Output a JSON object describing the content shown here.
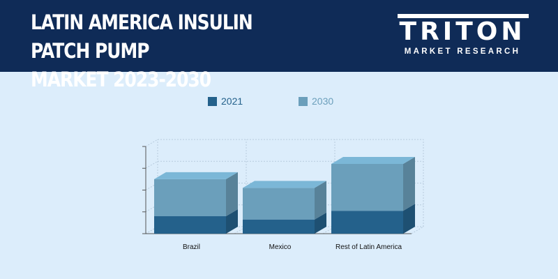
{
  "header": {
    "title_line1": "LATIN AMERICA INSULIN PATCH PUMP",
    "title_line2": "MARKET 2023-2030",
    "logo_word": "TRITON",
    "logo_sub": "MARKET RESEARCH",
    "background": "#0f2b57"
  },
  "chart_data": {
    "type": "bar",
    "stacked": true,
    "three_d": true,
    "categories": [
      "Brazil",
      "Mexico",
      "Rest of Latin America"
    ],
    "series": [
      {
        "name": "2021",
        "values": [
          0.8,
          0.65,
          1.05
        ],
        "color": "#24618b"
      },
      {
        "name": "2030",
        "values": [
          1.7,
          1.45,
          2.15
        ],
        "color": "#6b9fbb"
      }
    ],
    "ylim": [
      0,
      4
    ],
    "y_ticks_labeled": false,
    "grid": true,
    "legend": "top-center"
  }
}
